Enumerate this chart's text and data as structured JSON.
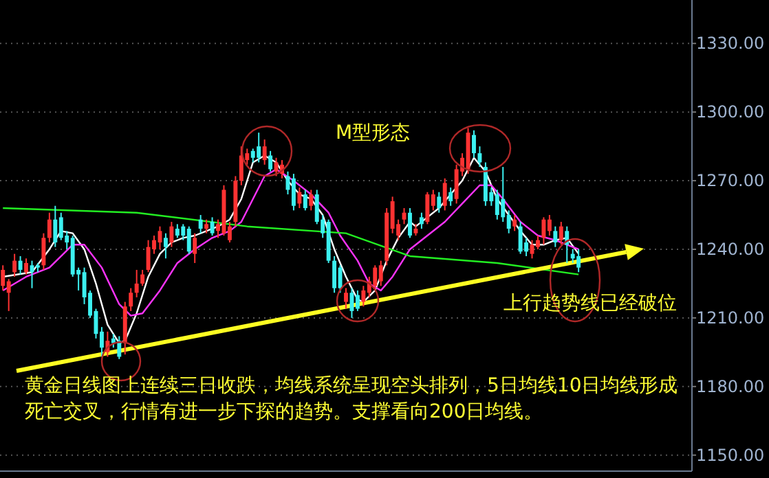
{
  "chart_data": {
    "type": "candlestick",
    "categories": [
      null,
      null,
      null,
      null,
      null,
      null,
      null,
      null,
      null,
      null,
      null,
      null,
      null,
      null,
      null,
      null,
      null,
      null,
      null,
      null,
      null,
      null,
      null,
      null,
      null,
      null,
      null,
      null,
      null,
      null,
      null,
      null,
      null,
      null,
      null,
      null,
      null,
      null,
      null,
      null,
      null,
      null,
      null,
      null,
      null,
      null,
      null,
      null,
      null,
      null,
      null,
      null,
      null,
      null,
      null,
      null,
      null,
      null,
      null,
      null,
      null,
      null,
      null,
      null,
      null,
      null,
      null,
      null,
      null,
      null,
      null,
      null,
      null,
      null,
      null,
      null,
      null,
      null,
      null,
      null,
      null,
      null,
      null,
      null,
      null,
      null,
      null,
      null,
      null,
      null,
      null,
      null,
      null,
      null,
      null,
      null,
      null,
      null,
      null,
      null,
      null,
      null,
      null,
      null,
      null,
      null,
      null,
      null,
      null,
      null,
      null,
      null,
      null,
      null,
      null,
      null,
      null,
      null,
      null
    ],
    "ohlc": [
      [
        1224,
        1233,
        1222,
        1231
      ],
      [
        1221,
        1227,
        1213,
        1226
      ],
      [
        1230,
        1238,
        1228,
        1235
      ],
      [
        1235,
        1237,
        1229,
        1231
      ],
      [
        1230,
        1236,
        1229,
        1234
      ],
      [
        1233,
        1235,
        1223,
        1230
      ],
      [
        1233,
        1234,
        1230,
        1232
      ],
      [
        1233,
        1247,
        1231,
        1245
      ],
      [
        1245,
        1256,
        1243,
        1253
      ],
      [
        1253,
        1259,
        1241,
        1243
      ],
      [
        1254,
        1256,
        1244,
        1245
      ],
      [
        1246,
        1248,
        1240,
        1243
      ],
      [
        1245,
        1246,
        1228,
        1229
      ],
      [
        1231,
        1232,
        1222,
        1229
      ],
      [
        1230,
        1232,
        1216,
        1219
      ],
      [
        1221,
        1222,
        1210,
        1211
      ],
      [
        1213,
        1214,
        1201,
        1203
      ],
      [
        1204,
        1206,
        1193,
        1197
      ],
      [
        1195,
        1204,
        1193,
        1200
      ],
      [
        1201,
        1203,
        1197,
        1199
      ],
      [
        1200,
        1202,
        1192,
        1193
      ],
      [
        1199,
        1217,
        1194,
        1215
      ],
      [
        1215,
        1223,
        1213,
        1221
      ],
      [
        1221,
        1231,
        1219,
        1225
      ],
      [
        1225,
        1231,
        1224,
        1229
      ],
      [
        1231,
        1244,
        1230,
        1241
      ],
      [
        1240,
        1246,
        1238,
        1244
      ],
      [
        1243,
        1250,
        1240,
        1248
      ],
      [
        1245,
        1247,
        1236,
        1241
      ],
      [
        1243,
        1252,
        1241,
        1250
      ],
      [
        1249,
        1251,
        1245,
        1246
      ],
      [
        1250,
        1251,
        1244,
        1246
      ],
      [
        1249,
        1250,
        1238,
        1239
      ],
      [
        1238,
        1247,
        1234,
        1245
      ],
      [
        1253,
        1255,
        1247,
        1249
      ],
      [
        1249,
        1253,
        1247,
        1251
      ],
      [
        1252,
        1254,
        1246,
        1247
      ],
      [
        1248,
        1253,
        1245,
        1251
      ],
      [
        1247,
        1268,
        1246,
        1266
      ],
      [
        1244,
        1252,
        1243,
        1250
      ],
      [
        1252,
        1272,
        1250,
        1270
      ],
      [
        1270,
        1285,
        1268,
        1281
      ],
      [
        1279,
        1284,
        1277,
        1282
      ],
      [
        1283,
        1284,
        1278,
        1280
      ],
      [
        1285,
        1291,
        1278,
        1280
      ],
      [
        1279,
        1288,
        1277,
        1285
      ],
      [
        1281,
        1283,
        1274,
        1275
      ],
      [
        1274,
        1280,
        1272,
        1278
      ],
      [
        1273,
        1279,
        1271,
        1277
      ],
      [
        1272,
        1274,
        1264,
        1266
      ],
      [
        1271,
        1273,
        1257,
        1259
      ],
      [
        1260,
        1267,
        1258,
        1265
      ],
      [
        1264,
        1266,
        1257,
        1258
      ],
      [
        1259,
        1266,
        1257,
        1264
      ],
      [
        1264,
        1266,
        1251,
        1252
      ],
      [
        1253,
        1255,
        1245,
        1247
      ],
      [
        1252,
        1253,
        1234,
        1235
      ],
      [
        1235,
        1237,
        1221,
        1223
      ],
      [
        1232,
        1233,
        1221,
        1223
      ],
      [
        1217,
        1223,
        1214,
        1221
      ],
      [
        1221,
        1223,
        1210,
        1213
      ],
      [
        1220,
        1222,
        1213,
        1214
      ],
      [
        1217,
        1224,
        1215,
        1222
      ],
      [
        1221,
        1228,
        1219,
        1226
      ],
      [
        1224,
        1233,
        1222,
        1232
      ],
      [
        1226,
        1235,
        1224,
        1233
      ],
      [
        1235,
        1258,
        1233,
        1256
      ],
      [
        1249,
        1263,
        1247,
        1261
      ],
      [
        1246,
        1253,
        1244,
        1251
      ],
      [
        1253,
        1258,
        1251,
        1256
      ],
      [
        1256,
        1258,
        1245,
        1246
      ],
      [
        1247,
        1251,
        1246,
        1249
      ],
      [
        1254,
        1256,
        1249,
        1251
      ],
      [
        1252,
        1265,
        1251,
        1264
      ],
      [
        1259,
        1266,
        1257,
        1264
      ],
      [
        1263,
        1265,
        1256,
        1258
      ],
      [
        1259,
        1271,
        1257,
        1269
      ],
      [
        1265,
        1267,
        1259,
        1261
      ],
      [
        1262,
        1277,
        1260,
        1275
      ],
      [
        1274,
        1282,
        1272,
        1280
      ],
      [
        1275,
        1293,
        1273,
        1291
      ],
      [
        1290,
        1292,
        1280,
        1282
      ],
      [
        1282,
        1285,
        1276,
        1278
      ],
      [
        1276,
        1278,
        1259,
        1261
      ],
      [
        1265,
        1267,
        1259,
        1261
      ],
      [
        1264,
        1266,
        1253,
        1255
      ],
      [
        1262,
        1276,
        1252,
        1254
      ],
      [
        1255,
        1257,
        1247,
        1249
      ],
      [
        1250,
        1255,
        1248,
        1253
      ],
      [
        1250,
        1252,
        1238,
        1239
      ],
      [
        1243,
        1245,
        1237,
        1239
      ],
      [
        1238,
        1244,
        1236,
        1242
      ],
      [
        1241,
        1246,
        1240,
        1244
      ],
      [
        1245,
        1254,
        1242,
        1253
      ],
      [
        1248,
        1255,
        1246,
        1253
      ],
      [
        1248,
        1250,
        1241,
        1243
      ],
      [
        1244,
        1252,
        1242,
        1250
      ],
      [
        1248,
        1250,
        1234,
        1242
      ],
      [
        1238,
        1240,
        1234,
        1236
      ],
      [
        1237,
        1240,
        1230,
        1232
      ],
      null,
      null,
      null,
      null,
      null,
      null,
      null,
      null,
      null,
      null,
      null,
      null,
      null,
      null,
      null,
      null,
      null,
      null,
      null
    ],
    "colors": [
      "#ff3232",
      "#ff3232",
      "#ff3232",
      "#3cf0f0",
      "#ff3232",
      "#3cf0f0",
      "#3cf0f0",
      "#ff3232",
      "#ff3232",
      "#3cf0f0",
      "#3cf0f0",
      "#3cf0f0",
      "#3cf0f0",
      "#3cf0f0",
      "#3cf0f0",
      "#3cf0f0",
      "#3cf0f0",
      "#3cf0f0",
      "#ff3232",
      "#3cf0f0",
      "#3cf0f0",
      "#ff3232",
      "#ff3232",
      "#ff3232",
      "#ff3232",
      "#ff3232",
      "#ff3232",
      "#ff3232",
      "#3cf0f0",
      "#ff3232",
      "#3cf0f0",
      "#3cf0f0",
      "#3cf0f0",
      "#ff3232",
      "#3cf0f0",
      "#ff3232",
      "#3cf0f0",
      "#ff3232",
      "#ff3232",
      "#ff3232",
      "#ff3232",
      "#ff3232",
      "#ff3232",
      "#3cf0f0",
      "#3cf0f0",
      "#ff3232",
      "#3cf0f0",
      "#ff3232",
      "#ff3232",
      "#3cf0f0",
      "#3cf0f0",
      "#ff3232",
      "#3cf0f0",
      "#ff3232",
      "#3cf0f0",
      "#3cf0f0",
      "#3cf0f0",
      "#3cf0f0",
      "#3cf0f0",
      "#ff3232",
      "#3cf0f0",
      "#3cf0f0",
      "#ff3232",
      "#ff3232",
      "#ff3232",
      "#ff3232",
      "#ff3232",
      "#ff3232",
      "#ff3232",
      "#ff3232",
      "#3cf0f0",
      "#ff3232",
      "#3cf0f0",
      "#ff3232",
      "#ff3232",
      "#3cf0f0",
      "#ff3232",
      "#3cf0f0",
      "#ff3232",
      "#ff3232",
      "#ff3232",
      "#3cf0f0",
      "#3cf0f0",
      "#3cf0f0",
      "#3cf0f0",
      "#3cf0f0",
      "#3cf0f0",
      "#3cf0f0",
      "#ff3232",
      "#3cf0f0",
      "#3cf0f0",
      "#ff3232",
      "#ff3232",
      "#ff3232",
      "#ff3232",
      "#3cf0f0",
      "#ff3232",
      "#3cf0f0",
      "#3cf0f0",
      "#3cf0f0",
      null,
      null,
      null,
      null,
      null,
      null,
      null,
      null,
      null,
      null,
      null,
      null,
      null,
      null,
      null,
      null,
      null,
      null,
      null
    ],
    "series": [
      {
        "type": "line",
        "color": "#ffffff",
        "values": [
          1228,
          null,
          null,
          null,
          null,
          1230,
          null,
          null,
          1240,
          null,
          1248,
          null,
          1247,
          null,
          1240,
          null,
          1225,
          null,
          1207,
          null,
          1199,
          1200,
          null,
          1212,
          null,
          1228,
          null,
          1238,
          null,
          1243,
          null,
          1245,
          null,
          1246,
          null,
          1248,
          null,
          1250,
          null,
          1253,
          null,
          1262,
          null,
          1278,
          null,
          1281,
          null,
          1278,
          null,
          1270,
          null,
          1264,
          null,
          1262,
          null,
          1255,
          null,
          1240,
          null,
          1228,
          null,
          1218,
          1217,
          null,
          1222,
          null,
          1235,
          null,
          1245,
          null,
          1252,
          1250,
          null,
          1254,
          null,
          1258,
          null,
          1264,
          null,
          1270,
          null,
          1280,
          null,
          1274,
          null,
          1262,
          null,
          1255,
          null,
          1248,
          null,
          1242,
          null,
          1242,
          null,
          1244,
          null,
          1245,
          null,
          1238,
          null,
          null,
          null,
          null,
          null,
          null,
          null,
          null,
          null,
          null,
          null,
          null,
          null,
          null,
          null,
          null,
          null,
          null,
          null
        ]
      },
      {
        "type": "line",
        "color": "#ff33ff",
        "values": [
          1222,
          null,
          null,
          null,
          1228,
          null,
          null,
          null,
          1232,
          null,
          null,
          null,
          1242,
          null,
          1242,
          null,
          null,
          1232,
          null,
          null,
          1216,
          null,
          1211,
          null,
          1212,
          null,
          null,
          1222,
          null,
          null,
          1234,
          null,
          null,
          1240,
          null,
          null,
          1245,
          null,
          null,
          1248,
          null,
          1252,
          null,
          1262,
          null,
          1272,
          null,
          1275,
          null,
          null,
          1270,
          null,
          null,
          1264,
          null,
          null,
          1256,
          null,
          1246,
          null,
          null,
          1235,
          null,
          1225,
          null,
          1222,
          null,
          1228,
          null,
          null,
          1240,
          null,
          null,
          1246,
          null,
          null,
          1252,
          null,
          null,
          1260,
          null,
          null,
          1268,
          null,
          1268,
          null,
          1262,
          null,
          null,
          1252,
          null,
          null,
          1246,
          null,
          null,
          1244,
          null,
          1242,
          null,
          1240,
          null,
          null,
          null,
          null,
          null,
          null,
          null,
          null,
          null,
          null,
          null,
          null,
          null,
          null,
          null,
          null,
          null,
          null,
          null
        ]
      },
      {
        "type": "line",
        "color": "#22ee22",
        "values": [
          1258,
          null,
          null,
          null,
          null,
          null,
          null,
          null,
          null,
          null,
          null,
          null,
          null,
          null,
          null,
          null,
          null,
          null,
          null,
          null,
          null,
          null,
          null,
          1256,
          null,
          null,
          null,
          null,
          null,
          null,
          null,
          null,
          null,
          null,
          null,
          null,
          null,
          null,
          null,
          null,
          null,
          null,
          1250,
          null,
          null,
          null,
          null,
          null,
          null,
          null,
          null,
          null,
          null,
          null,
          null,
          null,
          null,
          null,
          null,
          1247,
          null,
          null,
          null,
          null,
          null,
          null,
          null,
          null,
          null,
          null,
          1237,
          null,
          null,
          null,
          null,
          null,
          null,
          null,
          null,
          null,
          null,
          null,
          null,
          null,
          null,
          1234,
          null,
          null,
          null,
          null,
          null,
          null,
          null,
          null,
          null,
          null,
          null,
          null,
          null,
          1229,
          null,
          null,
          null,
          null,
          null,
          null,
          null,
          null,
          null,
          null,
          null,
          null,
          null,
          null,
          null,
          null,
          null,
          null,
          null
        ]
      }
    ],
    "ylim": [
      1143,
      1349
    ],
    "yticks": [
      {
        "value": 1150,
        "label": "1150.00"
      },
      {
        "value": 1180,
        "label": "1180.00"
      },
      {
        "value": 1210,
        "label": "1210.00"
      },
      {
        "value": 1240,
        "label": "1240.00"
      },
      {
        "value": 1270,
        "label": "1270.00"
      },
      {
        "value": 1300,
        "label": "1300.00"
      },
      {
        "value": 1330,
        "label": "1330.00"
      }
    ],
    "tick_labels": "y",
    "grid": "y",
    "annotations": [
      "M型形态",
      "上行趋势线已经破位",
      "黄金日线图上连续三日收跌，均线系统呈现空头排列，5日均线10日均线形成死亡交叉，行情有进一步下探的趋势。支撑看向200日均线。"
    ]
  }
}
